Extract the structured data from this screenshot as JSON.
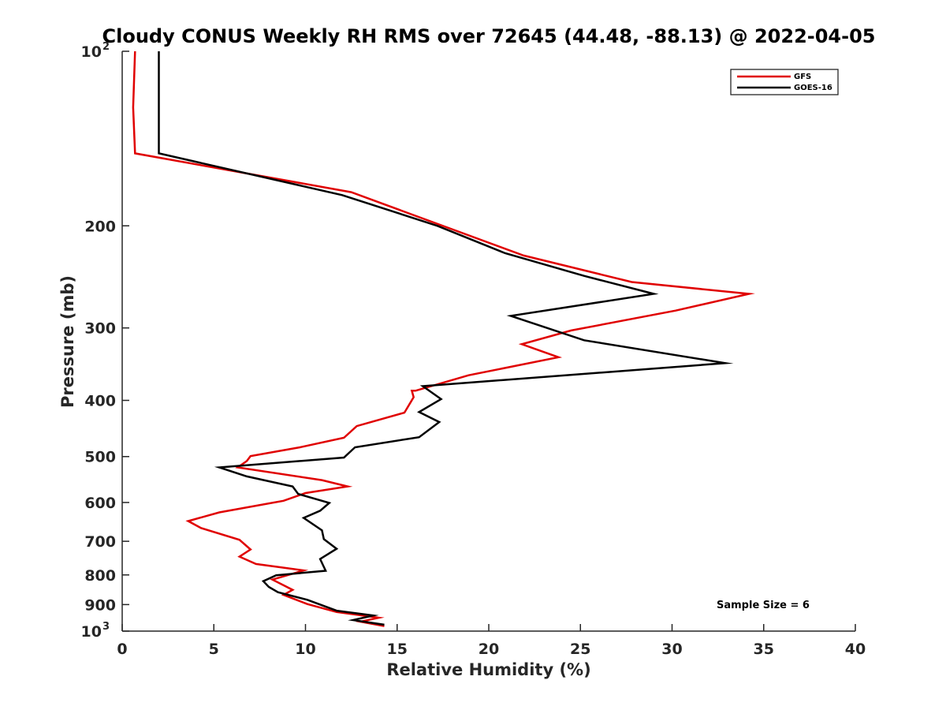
{
  "chart_data": {
    "type": "line",
    "title": "Cloudy CONUS Weekly RH RMS over 72645 (44.48, -88.13) @ 2022-04-05",
    "xlabel": "Relative Humidity (%)",
    "ylabel": "Pressure (mb)",
    "xlim": [
      0,
      40
    ],
    "ylim": [
      100,
      1000
    ],
    "y_scale": "log",
    "y_reversed": true,
    "grid": false,
    "legend_position": "top-right",
    "x_ticks": [
      "0",
      "5",
      "10",
      "15",
      "20",
      "25",
      "30",
      "35",
      "40"
    ],
    "y_ticks": [
      {
        "value": 100,
        "base": "10",
        "exp": "2"
      },
      {
        "value": 200,
        "label": "200"
      },
      {
        "value": 300,
        "label": "300"
      },
      {
        "value": 400,
        "label": "400"
      },
      {
        "value": 500,
        "label": "500"
      },
      {
        "value": 600,
        "label": "600"
      },
      {
        "value": 700,
        "label": "700"
      },
      {
        "value": 800,
        "label": "800"
      },
      {
        "value": 900,
        "label": "900"
      },
      {
        "value": 1000,
        "base": "10",
        "exp": "3"
      }
    ],
    "annotation": "Sample Size = 6",
    "series": [
      {
        "name": "GFS",
        "color": "#e00000",
        "points": [
          [
            0.7,
            100
          ],
          [
            0.6,
            125
          ],
          [
            0.7,
            150
          ],
          [
            12.5,
            175
          ],
          [
            21.9,
            225
          ],
          [
            27.8,
            250
          ],
          [
            34.2,
            262
          ],
          [
            30.2,
            280
          ],
          [
            24.5,
            303
          ],
          [
            21.8,
            320
          ],
          [
            23.8,
            337
          ],
          [
            18.9,
            362
          ],
          [
            16.0,
            385
          ],
          [
            15.8,
            385
          ],
          [
            15.9,
            395
          ],
          [
            15.4,
            420
          ],
          [
            12.8,
            443
          ],
          [
            12.1,
            464
          ],
          [
            9.7,
            482
          ],
          [
            7.0,
            499
          ],
          [
            6.8,
            509
          ],
          [
            6.3,
            522
          ],
          [
            10.9,
            549
          ],
          [
            12.3,
            563
          ],
          [
            10.0,
            578
          ],
          [
            8.8,
            596
          ],
          [
            5.3,
            624
          ],
          [
            3.6,
            646
          ],
          [
            4.3,
            664
          ],
          [
            6.4,
            696
          ],
          [
            7.0,
            723
          ],
          [
            6.4,
            744
          ],
          [
            7.3,
            766
          ],
          [
            9.9,
            786
          ],
          [
            8.2,
            815
          ],
          [
            9.3,
            849
          ],
          [
            8.8,
            866
          ],
          [
            10.1,
            898
          ],
          [
            11.7,
            927
          ],
          [
            14.0,
            948
          ],
          [
            13.0,
            963
          ],
          [
            14.3,
            980
          ]
        ]
      },
      {
        "name": "GOES-16",
        "color": "#000000",
        "points": [
          [
            2.0,
            100
          ],
          [
            2.0,
            125
          ],
          [
            2.0,
            150
          ],
          [
            12.0,
            177
          ],
          [
            17.2,
            200
          ],
          [
            20.9,
            223
          ],
          [
            25.2,
            244
          ],
          [
            29.0,
            262
          ],
          [
            21.2,
            286
          ],
          [
            25.2,
            315
          ],
          [
            32.9,
            345
          ],
          [
            16.4,
            378
          ],
          [
            17.4,
            398
          ],
          [
            16.2,
            419
          ],
          [
            17.3,
            436
          ],
          [
            16.2,
            463
          ],
          [
            12.7,
            482
          ],
          [
            12.1,
            502
          ],
          [
            5.3,
            522
          ],
          [
            6.8,
            541
          ],
          [
            9.3,
            563
          ],
          [
            9.6,
            580
          ],
          [
            11.3,
            601
          ],
          [
            10.8,
            620
          ],
          [
            9.9,
            638
          ],
          [
            10.9,
            670
          ],
          [
            11.0,
            694
          ],
          [
            11.7,
            721
          ],
          [
            10.8,
            751
          ],
          [
            11.1,
            787
          ],
          [
            8.4,
            801
          ],
          [
            7.7,
            820
          ],
          [
            8.0,
            839
          ],
          [
            8.5,
            857
          ],
          [
            10.1,
            883
          ],
          [
            11.7,
            922
          ],
          [
            13.7,
            940
          ],
          [
            12.6,
            957
          ],
          [
            14.3,
            975
          ]
        ]
      }
    ]
  }
}
